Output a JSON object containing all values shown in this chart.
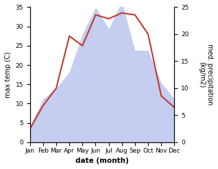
{
  "months": [
    "Jan",
    "Feb",
    "Mar",
    "Apr",
    "May",
    "Jun",
    "Jul",
    "Aug",
    "Sep",
    "Oct",
    "Nov",
    "Dec"
  ],
  "temperature": [
    3.5,
    9.5,
    14.0,
    27.5,
    25.0,
    33.0,
    32.0,
    33.5,
    33.0,
    28.0,
    12.0,
    9.0
  ],
  "precipitation": [
    3.0,
    8.0,
    10.0,
    13.0,
    20.0,
    25.0,
    21.0,
    26.0,
    17.0,
    17.0,
    11.0,
    8.0
  ],
  "temp_color": "#c0392b",
  "precip_color": "#c5cdf0",
  "temp_ylim": [
    0,
    35
  ],
  "precip_ylim": [
    0,
    25
  ],
  "temp_yticks": [
    0,
    5,
    10,
    15,
    20,
    25,
    30,
    35
  ],
  "precip_yticks": [
    0,
    5,
    10,
    15,
    20,
    25
  ],
  "ylabel_left": "max temp (C)",
  "ylabel_right": "med. precipitation\n(kg/m2)",
  "xlabel": "date (month)",
  "fig_width": 3.18,
  "fig_height": 2.47,
  "dpi": 100,
  "bg_color": "#ffffff"
}
